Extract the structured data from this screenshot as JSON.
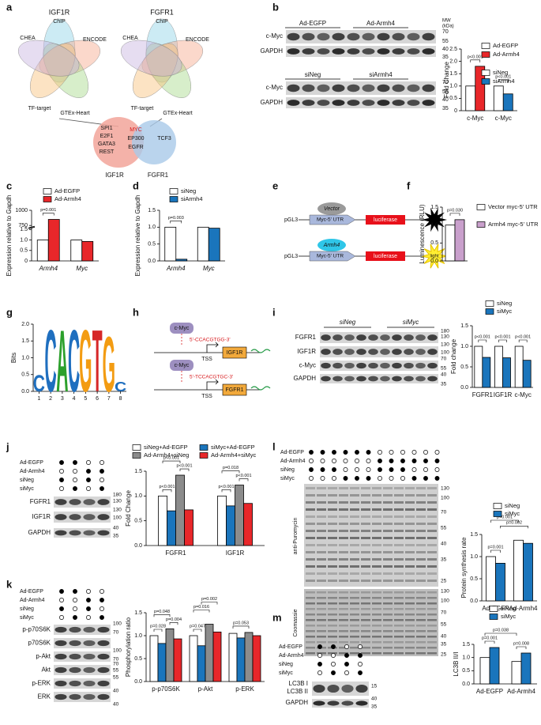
{
  "figure": {
    "panel_labels": [
      "a",
      "b",
      "c",
      "d",
      "e",
      "f",
      "g",
      "h",
      "i",
      "j",
      "k",
      "l",
      "m"
    ],
    "a": {
      "venn1_title": "IGF1R",
      "venn2_title": "FGFR1",
      "sets": [
        "ChIP",
        "CHEA",
        "ENCODE",
        "TF-target",
        "GTEx-Heart"
      ],
      "overlap_left": [
        "SPI1",
        "E2F1",
        "GATA3",
        "REST"
      ],
      "overlap_shared": [
        "MYC",
        "EP300",
        "EGFR"
      ],
      "overlap_right": [
        "TCF3"
      ],
      "overlap_sets": [
        "IGF1R",
        "FGFR1"
      ]
    },
    "b": {
      "groups1": [
        "Ad-EGFP",
        "Ad-Armh4"
      ],
      "groups2": [
        "siNeg",
        "siArmh4"
      ],
      "proteins": [
        "c-Myc",
        "GAPDH"
      ],
      "mw_title": [
        "MW",
        "(kDa)"
      ],
      "mw": [
        "70",
        "55",
        "40",
        "35",
        "70",
        "55",
        "40",
        "35"
      ]
    },
    "e": {
      "plasmid": "pGL3",
      "utr": "Myc-5' UTR",
      "reporter": "luciferase",
      "vector": "Vector",
      "armh4": "Armh4",
      "light": "light"
    },
    "h": {
      "tf": "c-Myc",
      "site1": "5'-CCACGTGG-3'",
      "site2": "5'-TCCACGTGC-3'",
      "tss": "TSS",
      "gene1": "IGF1R",
      "gene2": "FGFR1"
    },
    "i": {
      "groups": [
        "siNeg",
        "siMyc"
      ],
      "proteins": [
        "FGFR1",
        "IGF1R",
        "c-Myc",
        "GAPDH"
      ],
      "mw": [
        "180",
        "130",
        "130",
        "100",
        "70",
        "55",
        "40",
        "35"
      ]
    },
    "j": {
      "conditions": [
        "Ad-EGFP",
        "Ad-Armh4",
        "siNeg",
        "siMyc"
      ],
      "proteins": [
        "FGFR1",
        "IGF1R",
        "GAPDH"
      ],
      "mw": [
        "180",
        "130",
        "130",
        "100",
        "40",
        "35"
      ]
    },
    "k": {
      "conditions": [
        "Ad-EGFP",
        "Ad-Armh4",
        "siNeg",
        "siMyc"
      ],
      "proteins": [
        "p-p70S6K",
        "p70S6K",
        "p-Akt",
        "Akt",
        "p-ERK",
        "ERK"
      ],
      "mw": [
        "100",
        "70",
        "100",
        "70",
        "70",
        "55",
        "55",
        "40",
        "40"
      ]
    },
    "l": {
      "conditions": [
        "Ad-EGFP",
        "Ad-Armh4",
        "siNeg",
        "siMyc"
      ],
      "stains": [
        "anti-Puromycin",
        "Coomassie"
      ],
      "mw": [
        "130",
        "100",
        "70",
        "55",
        "40",
        "35",
        "25",
        "130",
        "100",
        "70",
        "55",
        "40",
        "35",
        "25"
      ]
    },
    "m": {
      "conditions": [
        "Ad-EGFP",
        "Ad-Armh4",
        "siNeg",
        "siMyc"
      ],
      "proteins": [
        "LC3B I",
        "LC3B II",
        "GAPDH"
      ],
      "mw": [
        "15",
        "40",
        "35"
      ]
    }
  },
  "chart_data": [
    {
      "type": "bar",
      "ylabel": "Fold Change",
      "categories": [
        "c-Myc",
        "c-Myc"
      ],
      "ylim": [
        0,
        2.5
      ],
      "yticks": [
        0,
        {
          "value": 0.5,
          "label": "0.5"
        },
        {
          "value": 1,
          "label": "1.0"
        },
        {
          "value": 1.5,
          "label": "1.5"
        },
        {
          "value": 2,
          "label": "2.0"
        },
        {
          "value": 2.5,
          "label": "2.5"
        }
      ],
      "series": [
        {
          "name": "Ad-EGFP",
          "color": "#ffffff",
          "values": [
            1.0,
            null
          ]
        },
        {
          "name": "Ad-Armh4",
          "color": "#e8272a",
          "values": [
            1.8,
            null
          ]
        },
        {
          "name": "siNeg",
          "color": "#ffffff",
          "values": [
            null,
            1.0
          ]
        },
        {
          "name": "siArmh4",
          "color": "#1a75bc",
          "values": [
            null,
            0.68
          ]
        }
      ],
      "annotations": [
        "p<0.001",
        "p<0.001"
      ]
    },
    {
      "type": "bar",
      "ylabel": "Expression relative to Gapdh",
      "categories": [
        "Armh4",
        "Myc"
      ],
      "ylim": [
        0,
        1000
      ],
      "axis_break": [
        1.5,
        750
      ],
      "yticks": [
        0,
        {
          "value": 0.5,
          "label": "0.5"
        },
        {
          "value": 1,
          "label": "1.0"
        },
        {
          "value": 1.5,
          "label": "1.5"
        },
        750,
        1000
      ],
      "series": [
        {
          "name": "Ad-EGFP",
          "color": "#ffffff",
          "values": [
            1.0,
            1.0
          ]
        },
        {
          "name": "Ad-Armh4",
          "color": "#e8272a",
          "values": [
            850,
            0.93
          ]
        }
      ],
      "annotations": [
        "p=0.001"
      ]
    },
    {
      "type": "bar",
      "ylabel": "Expression relative to Gapdh",
      "categories": [
        "Armh4",
        "Myc"
      ],
      "ylim": [
        0,
        1.5
      ],
      "yticks": [
        {
          "value": 0,
          "label": "0.0"
        },
        {
          "value": 0.5,
          "label": "0.5"
        },
        {
          "value": 1,
          "label": "1.0"
        },
        {
          "value": 1.5,
          "label": "1.5"
        }
      ],
      "series": [
        {
          "name": "siNeg",
          "color": "#ffffff",
          "values": [
            1.0,
            1.0
          ]
        },
        {
          "name": "siArmh4",
          "color": "#1a75bc",
          "values": [
            0.05,
            0.97
          ]
        }
      ],
      "annotations": [
        "p=0.003"
      ]
    },
    {
      "type": "bar",
      "ylabel": "Luminescence (RLU)",
      "categories": [
        null
      ],
      "ylim": [
        0,
        1.5
      ],
      "yticks": [
        {
          "value": 0,
          "label": "0.0"
        },
        {
          "value": 0.5,
          "label": "0.5"
        },
        {
          "value": 1,
          "label": "1.0"
        },
        {
          "value": 1.5,
          "label": "1.5"
        }
      ],
      "series": [
        {
          "name": "Vector myc-5' UTR",
          "color": "#ffffff",
          "values": [
            1.0
          ]
        },
        {
          "name": "Armh4 myc-5' UTR",
          "color": "#c9a0cc",
          "values": [
            1.15
          ]
        }
      ],
      "annotations": [
        "p=0.030"
      ]
    },
    {
      "type": "logo",
      "ylabel": "Bits",
      "xticks": [
        1,
        2,
        3,
        4,
        5,
        6,
        7,
        8
      ],
      "ylim": [
        0,
        2
      ],
      "yticks": [
        {
          "value": 0,
          "label": "0.0"
        },
        {
          "value": 0.5,
          "label": "0.5"
        },
        {
          "value": 1,
          "label": "1.0"
        },
        {
          "value": 1.5,
          "label": "1.5"
        },
        {
          "value": 2,
          "label": "2.0"
        }
      ],
      "letters": [
        "C",
        "C",
        "A",
        "C",
        "G",
        "T",
        "G",
        "C"
      ],
      "values": [
        0.5,
        1.9,
        1.9,
        1.9,
        1.9,
        1.9,
        1.7,
        0.3
      ]
    },
    {
      "type": "bar",
      "ylabel": "Fold change",
      "categories": [
        "FGFR1",
        "IGF1R",
        "c-Myc"
      ],
      "ylim": [
        0,
        1.5
      ],
      "yticks": [
        {
          "value": 0,
          "label": "0.0"
        },
        {
          "value": 0.5,
          "label": "0.5"
        },
        {
          "value": 1,
          "label": "1.0"
        },
        {
          "value": 1.5,
          "label": "1.5"
        }
      ],
      "series": [
        {
          "name": "siNeg",
          "color": "#ffffff",
          "values": [
            1.0,
            1.0,
            1.0
          ]
        },
        {
          "name": "siMyc",
          "color": "#1a75bc",
          "values": [
            0.73,
            0.72,
            0.66
          ]
        }
      ],
      "annotations": [
        "p<0.001",
        "p<0.001",
        "p<0.001"
      ]
    },
    {
      "type": "bar",
      "ylabel": "Fold Change",
      "categories": [
        "FGFR1",
        "IGF1R"
      ],
      "ylim": [
        0,
        1.5
      ],
      "yticks": [
        {
          "value": 0,
          "label": "0.0"
        },
        {
          "value": 0.5,
          "label": "0.5"
        },
        {
          "value": 1,
          "label": "1.0"
        },
        {
          "value": 1.5,
          "label": "1.5"
        }
      ],
      "series": [
        {
          "name": "siNeg+Ad-EGFP",
          "color": "#ffffff",
          "values": [
            1.0,
            1.0
          ]
        },
        {
          "name": "siMyc+Ad-EGFP",
          "color": "#1a75bc",
          "values": [
            0.7,
            0.8
          ]
        },
        {
          "name": "Ad-Armh4+siNeg",
          "color": "#8c8c8c",
          "values": [
            1.42,
            1.22
          ]
        },
        {
          "name": "Ad-Armh4+siMyc",
          "color": "#e8272a",
          "values": [
            0.72,
            0.85
          ]
        }
      ],
      "annotations": [
        "p<0.001",
        "p<0.001",
        "p<0.001",
        "p=0.018",
        "p<0.001",
        "p<0.001"
      ]
    },
    {
      "type": "bar",
      "ylabel": "Phosphorylation ratio",
      "categories": [
        "p-p70S6K",
        "p-Akt",
        "p-ERK"
      ],
      "ylim": [
        0,
        1.5
      ],
      "yticks": [
        {
          "value": 0,
          "label": "0.0"
        },
        {
          "value": 0.5,
          "label": "0.5"
        },
        {
          "value": 1,
          "label": "1.0"
        },
        {
          "value": 1.5,
          "label": "1.5"
        }
      ],
      "series": [
        {
          "name": "siNeg+Ad-EGFP",
          "color": "#ffffff",
          "values": [
            1.0,
            1.0,
            1.05
          ]
        },
        {
          "name": "siMyc+Ad-EGFP",
          "color": "#1a75bc",
          "values": [
            0.83,
            0.78,
            0.95
          ]
        },
        {
          "name": "Ad-Armh4+siNeg",
          "color": "#8c8c8c",
          "values": [
            1.15,
            1.25,
            1.07
          ]
        },
        {
          "name": "Ad-Armh4+siMyc",
          "color": "#e8272a",
          "values": [
            0.93,
            1.08,
            1.0
          ]
        }
      ],
      "annotations": [
        "p=0.048",
        "p=0.028",
        "p=0.004",
        "p=0.002",
        "p=0.047",
        "p=0.016",
        "p=0.053"
      ]
    },
    {
      "type": "bar",
      "ylabel": "Protein synthesis rate",
      "categories": [
        "Ad-EGFP",
        "Ad-Armh4"
      ],
      "ylim": [
        0,
        1.5
      ],
      "yticks": [
        {
          "value": 0,
          "label": "0.0"
        },
        {
          "value": 0.5,
          "label": "0.5"
        },
        {
          "value": 1,
          "label": "1.0"
        },
        {
          "value": 1.5,
          "label": "1.5"
        }
      ],
      "series": [
        {
          "name": "siNeg",
          "color": "#ffffff",
          "values": [
            1.0,
            1.37
          ]
        },
        {
          "name": "siMyc",
          "color": "#1a75bc",
          "values": [
            0.85,
            1.3
          ]
        }
      ],
      "annotations": [
        "p<0.001",
        "p=0.002",
        "p=0.001"
      ]
    },
    {
      "type": "bar",
      "ylabel": "LC3B II/I",
      "categories": [
        "Ad-EGFP",
        "Ad-Armh4"
      ],
      "ylim": [
        0,
        1.5
      ],
      "yticks": [
        {
          "value": 0,
          "label": "0.0"
        },
        {
          "value": 0.5,
          "label": "0.5"
        },
        {
          "value": 1,
          "label": "1.0"
        },
        {
          "value": 1.5,
          "label": "1.5"
        }
      ],
      "series": [
        {
          "name": "siNeg",
          "color": "#ffffff",
          "values": [
            1.0,
            0.85
          ]
        },
        {
          "name": "siMyc",
          "color": "#1a75bc",
          "values": [
            1.38,
            1.17
          ]
        }
      ],
      "annotations": [
        "p=0.001",
        "p=0.038",
        "p=0.008"
      ]
    }
  ]
}
